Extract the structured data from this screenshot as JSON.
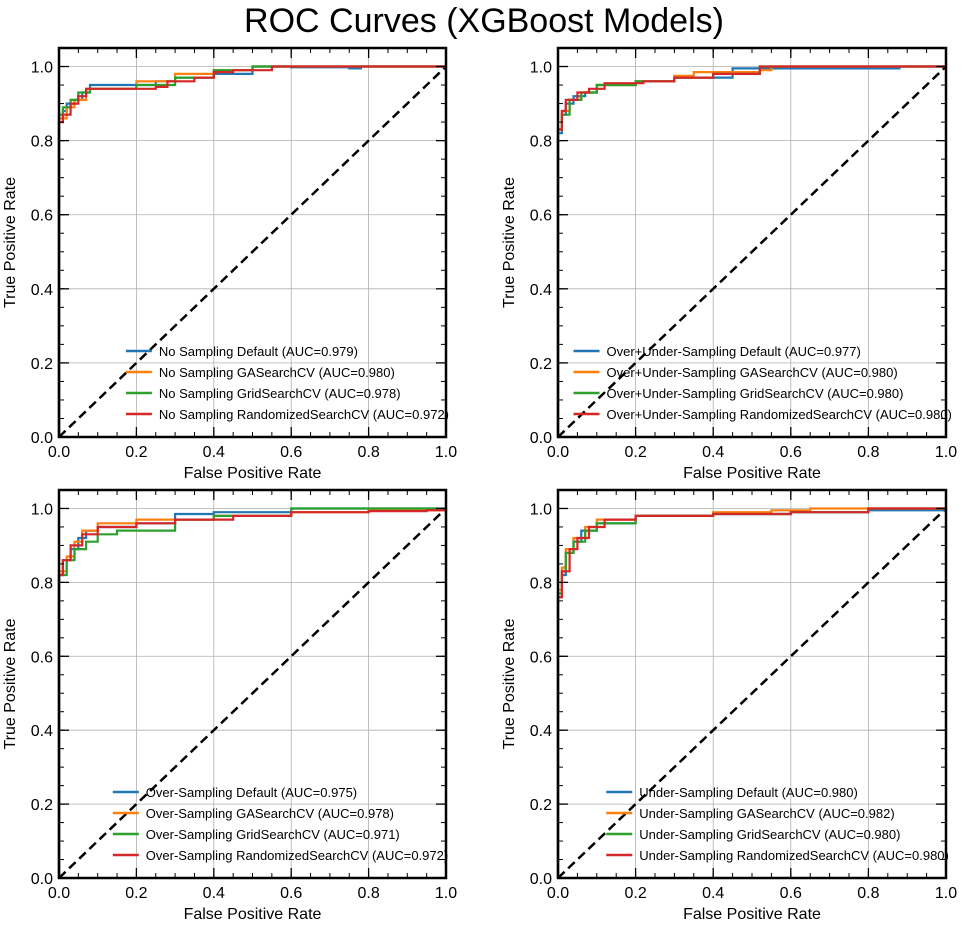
{
  "figure": {
    "title": "ROC Curves (XGBoost Models)"
  },
  "colors": {
    "blue": "#1f77b4",
    "orange": "#ff7f0e",
    "green": "#2ca02c",
    "red": "#d62728",
    "diagonal": "#000000",
    "grid": "#b0b0b0"
  },
  "chart_data": [
    {
      "type": "line",
      "title": "",
      "xlabel": "False Positive Rate",
      "ylabel": "True Positive Rate",
      "xlim": [
        0.0,
        1.0
      ],
      "ylim": [
        0.0,
        1.05
      ],
      "xticks": [
        "0.0",
        "0.2",
        "0.4",
        "0.6",
        "0.8",
        "1.0"
      ],
      "yticks": [
        "0.0",
        "0.2",
        "0.4",
        "0.6",
        "0.8",
        "1.0"
      ],
      "grid": true,
      "legend_position": "lower-right",
      "diagonal": [
        [
          0,
          0
        ],
        [
          1,
          1
        ]
      ],
      "series": [
        {
          "name": "No Sampling Default (AUC=0.979)",
          "color": "#1f77b4",
          "points": [
            [
              0,
              0
            ],
            [
              0,
              0.86
            ],
            [
              0.01,
              0.88
            ],
            [
              0.02,
              0.9
            ],
            [
              0.04,
              0.91
            ],
            [
              0.06,
              0.93
            ],
            [
              0.08,
              0.95
            ],
            [
              0.15,
              0.95
            ],
            [
              0.2,
              0.95
            ],
            [
              0.25,
              0.96
            ],
            [
              0.3,
              0.97
            ],
            [
              0.4,
              0.98
            ],
            [
              0.5,
              1.0
            ],
            [
              0.6,
              0.998
            ],
            [
              0.75,
              0.995
            ],
            [
              0.78,
              1.0
            ],
            [
              1.0,
              1.0
            ]
          ]
        },
        {
          "name": "No Sampling GASearchCV (AUC=0.980)",
          "color": "#ff7f0e",
          "points": [
            [
              0,
              0
            ],
            [
              0,
              0.86
            ],
            [
              0.02,
              0.89
            ],
            [
              0.04,
              0.91
            ],
            [
              0.07,
              0.94
            ],
            [
              0.15,
              0.94
            ],
            [
              0.2,
              0.96
            ],
            [
              0.3,
              0.98
            ],
            [
              0.4,
              0.99
            ],
            [
              0.5,
              1.0
            ],
            [
              1.0,
              1.0
            ]
          ]
        },
        {
          "name": "No Sampling GridSearchCV (AUC=0.978)",
          "color": "#2ca02c",
          "points": [
            [
              0,
              0
            ],
            [
              0,
              0.87
            ],
            [
              0.01,
              0.89
            ],
            [
              0.03,
              0.91
            ],
            [
              0.05,
              0.93
            ],
            [
              0.08,
              0.94
            ],
            [
              0.2,
              0.95
            ],
            [
              0.3,
              0.97
            ],
            [
              0.4,
              0.99
            ],
            [
              0.5,
              1.0
            ],
            [
              1.0,
              1.0
            ]
          ]
        },
        {
          "name": "No Sampling RandomizedSearchCV (AUC=0.972)",
          "color": "#d62728",
          "points": [
            [
              0,
              0
            ],
            [
              0,
              0.85
            ],
            [
              0.01,
              0.87
            ],
            [
              0.03,
              0.9
            ],
            [
              0.05,
              0.92
            ],
            [
              0.07,
              0.94
            ],
            [
              0.2,
              0.94
            ],
            [
              0.25,
              0.945
            ],
            [
              0.28,
              0.96
            ],
            [
              0.35,
              0.97
            ],
            [
              0.4,
              0.985
            ],
            [
              0.45,
              0.99
            ],
            [
              0.55,
              1.0
            ],
            [
              1.0,
              1.0
            ]
          ]
        }
      ]
    },
    {
      "type": "line",
      "title": "",
      "xlabel": "False Positive Rate",
      "ylabel": "True Positive Rate",
      "xlim": [
        0.0,
        1.0
      ],
      "ylim": [
        0.0,
        1.05
      ],
      "xticks": [
        "0.0",
        "0.2",
        "0.4",
        "0.6",
        "0.8",
        "1.0"
      ],
      "yticks": [
        "0.0",
        "0.2",
        "0.4",
        "0.6",
        "0.8",
        "1.0"
      ],
      "grid": true,
      "legend_position": "lower-right",
      "diagonal": [
        [
          0,
          0
        ],
        [
          1,
          1
        ]
      ],
      "series": [
        {
          "name": "Over+Under-Sampling Default (AUC=0.977)",
          "color": "#1f77b4",
          "points": [
            [
              0,
              0
            ],
            [
              0,
              0.82
            ],
            [
              0.01,
              0.87
            ],
            [
              0.02,
              0.9
            ],
            [
              0.04,
              0.92
            ],
            [
              0.07,
              0.93
            ],
            [
              0.1,
              0.95
            ],
            [
              0.2,
              0.96
            ],
            [
              0.3,
              0.97
            ],
            [
              0.45,
              0.995
            ],
            [
              0.87,
              0.995
            ],
            [
              0.88,
              1.0
            ],
            [
              1.0,
              1.0
            ]
          ]
        },
        {
          "name": "Over+Under-Sampling GASearchCV (AUC=0.980)",
          "color": "#ff7f0e",
          "points": [
            [
              0,
              0
            ],
            [
              0,
              0.83
            ],
            [
              0.01,
              0.88
            ],
            [
              0.03,
              0.91
            ],
            [
              0.06,
              0.93
            ],
            [
              0.1,
              0.95
            ],
            [
              0.2,
              0.96
            ],
            [
              0.3,
              0.975
            ],
            [
              0.35,
              0.985
            ],
            [
              0.52,
              0.99
            ],
            [
              0.55,
              1.0
            ],
            [
              1.0,
              1.0
            ]
          ]
        },
        {
          "name": "Over+Under-Sampling GridSearchCV (AUC=0.980)",
          "color": "#2ca02c",
          "points": [
            [
              0,
              0
            ],
            [
              0,
              0.83
            ],
            [
              0.01,
              0.87
            ],
            [
              0.03,
              0.91
            ],
            [
              0.06,
              0.93
            ],
            [
              0.1,
              0.95
            ],
            [
              0.2,
              0.96
            ],
            [
              0.3,
              0.97
            ],
            [
              0.4,
              0.98
            ],
            [
              0.52,
              1.0
            ],
            [
              1.0,
              1.0
            ]
          ]
        },
        {
          "name": "Over+Under-Sampling RandomizedSearchCV (AUC=0.980)",
          "color": "#d62728",
          "points": [
            [
              0,
              0
            ],
            [
              0,
              0.83
            ],
            [
              0.01,
              0.88
            ],
            [
              0.02,
              0.91
            ],
            [
              0.05,
              0.93
            ],
            [
              0.08,
              0.94
            ],
            [
              0.12,
              0.955
            ],
            [
              0.22,
              0.96
            ],
            [
              0.3,
              0.97
            ],
            [
              0.4,
              0.98
            ],
            [
              0.52,
              1.0
            ],
            [
              1.0,
              1.0
            ]
          ]
        }
      ]
    },
    {
      "type": "line",
      "title": "",
      "xlabel": "False Positive Rate",
      "ylabel": "True Positive Rate",
      "xlim": [
        0.0,
        1.0
      ],
      "ylim": [
        0.0,
        1.05
      ],
      "xticks": [
        "0.0",
        "0.2",
        "0.4",
        "0.6",
        "0.8",
        "1.0"
      ],
      "yticks": [
        "0.0",
        "0.2",
        "0.4",
        "0.6",
        "0.8",
        "1.0"
      ],
      "grid": true,
      "legend_position": "lower-right",
      "diagonal": [
        [
          0,
          0
        ],
        [
          1,
          1
        ]
      ],
      "series": [
        {
          "name": "Over-Sampling Default (AUC=0.975)",
          "color": "#1f77b4",
          "points": [
            [
              0,
              0
            ],
            [
              0,
              0.82
            ],
            [
              0.01,
              0.86
            ],
            [
              0.03,
              0.89
            ],
            [
              0.05,
              0.92
            ],
            [
              0.07,
              0.94
            ],
            [
              0.1,
              0.95
            ],
            [
              0.2,
              0.96
            ],
            [
              0.3,
              0.985
            ],
            [
              0.4,
              0.99
            ],
            [
              0.6,
              1.0
            ],
            [
              1.0,
              1.0
            ]
          ]
        },
        {
          "name": "Over-Sampling GASearchCV (AUC=0.978)",
          "color": "#ff7f0e",
          "points": [
            [
              0,
              0
            ],
            [
              0,
              0.83
            ],
            [
              0.02,
              0.87
            ],
            [
              0.04,
              0.91
            ],
            [
              0.06,
              0.94
            ],
            [
              0.1,
              0.96
            ],
            [
              0.2,
              0.97
            ],
            [
              0.4,
              0.98
            ],
            [
              0.6,
              0.99
            ],
            [
              0.8,
              0.995
            ],
            [
              1.0,
              1.0
            ]
          ]
        },
        {
          "name": "Over-Sampling GridSearchCV (AUC=0.971)",
          "color": "#2ca02c",
          "points": [
            [
              0,
              0
            ],
            [
              0,
              0.82
            ],
            [
              0.02,
              0.86
            ],
            [
              0.04,
              0.89
            ],
            [
              0.07,
              0.91
            ],
            [
              0.1,
              0.93
            ],
            [
              0.15,
              0.94
            ],
            [
              0.3,
              0.97
            ],
            [
              0.4,
              0.98
            ],
            [
              0.6,
              1.0
            ],
            [
              1.0,
              1.0
            ]
          ]
        },
        {
          "name": "Over-Sampling RandomizedSearchCV (AUC=0.972)",
          "color": "#d62728",
          "points": [
            [
              0,
              0
            ],
            [
              0,
              0.82
            ],
            [
              0.01,
              0.86
            ],
            [
              0.03,
              0.9
            ],
            [
              0.06,
              0.93
            ],
            [
              0.1,
              0.95
            ],
            [
              0.2,
              0.96
            ],
            [
              0.3,
              0.97
            ],
            [
              0.45,
              0.98
            ],
            [
              0.6,
              0.99
            ],
            [
              0.8,
              0.993
            ],
            [
              0.95,
              0.995
            ],
            [
              1.0,
              1.0
            ]
          ]
        }
      ]
    },
    {
      "type": "line",
      "title": "",
      "xlabel": "False Positive Rate",
      "ylabel": "True Positive Rate",
      "xlim": [
        0.0,
        1.0
      ],
      "ylim": [
        0.0,
        1.05
      ],
      "xticks": [
        "0.0",
        "0.2",
        "0.4",
        "0.6",
        "0.8",
        "1.0"
      ],
      "yticks": [
        "0.0",
        "0.2",
        "0.4",
        "0.6",
        "0.8",
        "1.0"
      ],
      "grid": true,
      "legend_position": "lower-right",
      "diagonal": [
        [
          0,
          0
        ],
        [
          1,
          1
        ]
      ],
      "series": [
        {
          "name": "Under-Sampling Default (AUC=0.980)",
          "color": "#1f77b4",
          "points": [
            [
              0,
              0
            ],
            [
              0,
              0.76
            ],
            [
              0.01,
              0.82
            ],
            [
              0.02,
              0.88
            ],
            [
              0.04,
              0.91
            ],
            [
              0.06,
              0.94
            ],
            [
              0.1,
              0.96
            ],
            [
              0.2,
              0.98
            ],
            [
              0.4,
              0.985
            ],
            [
              0.6,
              0.99
            ],
            [
              0.8,
              0.995
            ],
            [
              1.0,
              1.0
            ]
          ]
        },
        {
          "name": "Under-Sampling GASearchCV (AUC=0.982)",
          "color": "#ff7f0e",
          "points": [
            [
              0,
              0
            ],
            [
              0,
              0.78
            ],
            [
              0.01,
              0.84
            ],
            [
              0.02,
              0.89
            ],
            [
              0.04,
              0.92
            ],
            [
              0.07,
              0.95
            ],
            [
              0.1,
              0.97
            ],
            [
              0.2,
              0.98
            ],
            [
              0.4,
              0.99
            ],
            [
              0.55,
              0.995
            ],
            [
              0.65,
              1.0
            ],
            [
              1.0,
              1.0
            ]
          ]
        },
        {
          "name": "Under-Sampling GridSearchCV (AUC=0.980)",
          "color": "#2ca02c",
          "points": [
            [
              0,
              0
            ],
            [
              0,
              0.77
            ],
            [
              0.01,
              0.83
            ],
            [
              0.02,
              0.88
            ],
            [
              0.04,
              0.91
            ],
            [
              0.07,
              0.94
            ],
            [
              0.1,
              0.96
            ],
            [
              0.2,
              0.98
            ],
            [
              0.4,
              0.985
            ],
            [
              0.6,
              0.99
            ],
            [
              0.8,
              1.0
            ],
            [
              1.0,
              1.0
            ]
          ]
        },
        {
          "name": "Under-Sampling RandomizedSearchCV (AUC=0.980)",
          "color": "#d62728",
          "points": [
            [
              0,
              0
            ],
            [
              0,
              0.76
            ],
            [
              0.01,
              0.83
            ],
            [
              0.03,
              0.89
            ],
            [
              0.05,
              0.92
            ],
            [
              0.08,
              0.95
            ],
            [
              0.12,
              0.97
            ],
            [
              0.2,
              0.98
            ],
            [
              0.4,
              0.985
            ],
            [
              0.6,
              0.99
            ],
            [
              0.8,
              1.0
            ],
            [
              1.0,
              1.0
            ]
          ]
        }
      ]
    }
  ]
}
